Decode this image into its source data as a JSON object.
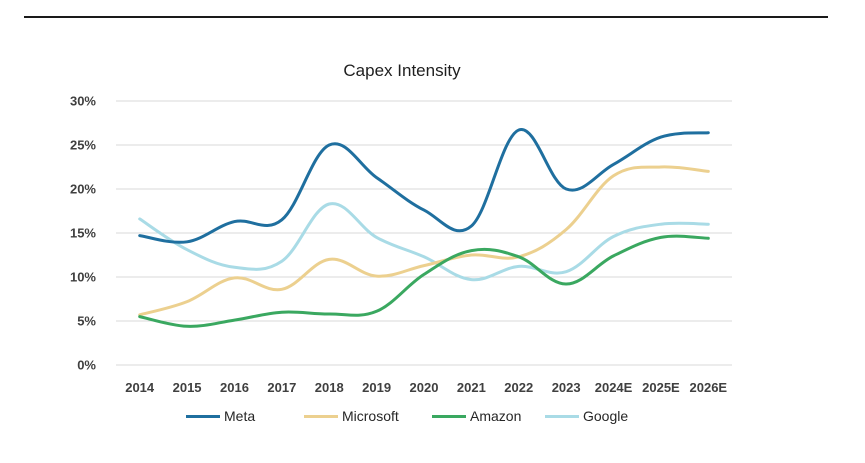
{
  "chart_data": {
    "type": "line",
    "title": "Capex Intensity",
    "xlabel": "",
    "ylabel": "",
    "categories": [
      "2014",
      "2015",
      "2016",
      "2017",
      "2018",
      "2019",
      "2020",
      "2021",
      "2022",
      "2023",
      "2024E",
      "2025E",
      "2026E"
    ],
    "y_ticks": [
      "0%",
      "5%",
      "10%",
      "15%",
      "20%",
      "25%",
      "30%"
    ],
    "ylim": [
      0,
      30
    ],
    "grid": true,
    "legend_position": "bottom",
    "series": [
      {
        "name": "Meta",
        "color": "#1f6f9f",
        "values": [
          14.7,
          14.0,
          16.3,
          16.5,
          25.0,
          21.3,
          17.6,
          15.8,
          26.7,
          20.0,
          22.8,
          25.9,
          26.4
        ]
      },
      {
        "name": "Microsoft",
        "color": "#ecd08f",
        "values": [
          5.7,
          7.2,
          9.9,
          8.6,
          12.0,
          10.1,
          11.3,
          12.5,
          12.3,
          15.4,
          21.5,
          22.5,
          22.0
        ]
      },
      {
        "name": "Amazon",
        "color": "#3aa860",
        "values": [
          5.5,
          4.4,
          5.1,
          6.0,
          5.8,
          6.1,
          10.3,
          13.0,
          12.3,
          9.2,
          12.4,
          14.5,
          14.4
        ]
      },
      {
        "name": "Google",
        "color": "#a9dbe6",
        "values": [
          16.6,
          13.1,
          11.1,
          11.8,
          18.3,
          14.5,
          12.3,
          9.7,
          11.2,
          10.6,
          14.6,
          16.0,
          16.0
        ]
      }
    ]
  }
}
